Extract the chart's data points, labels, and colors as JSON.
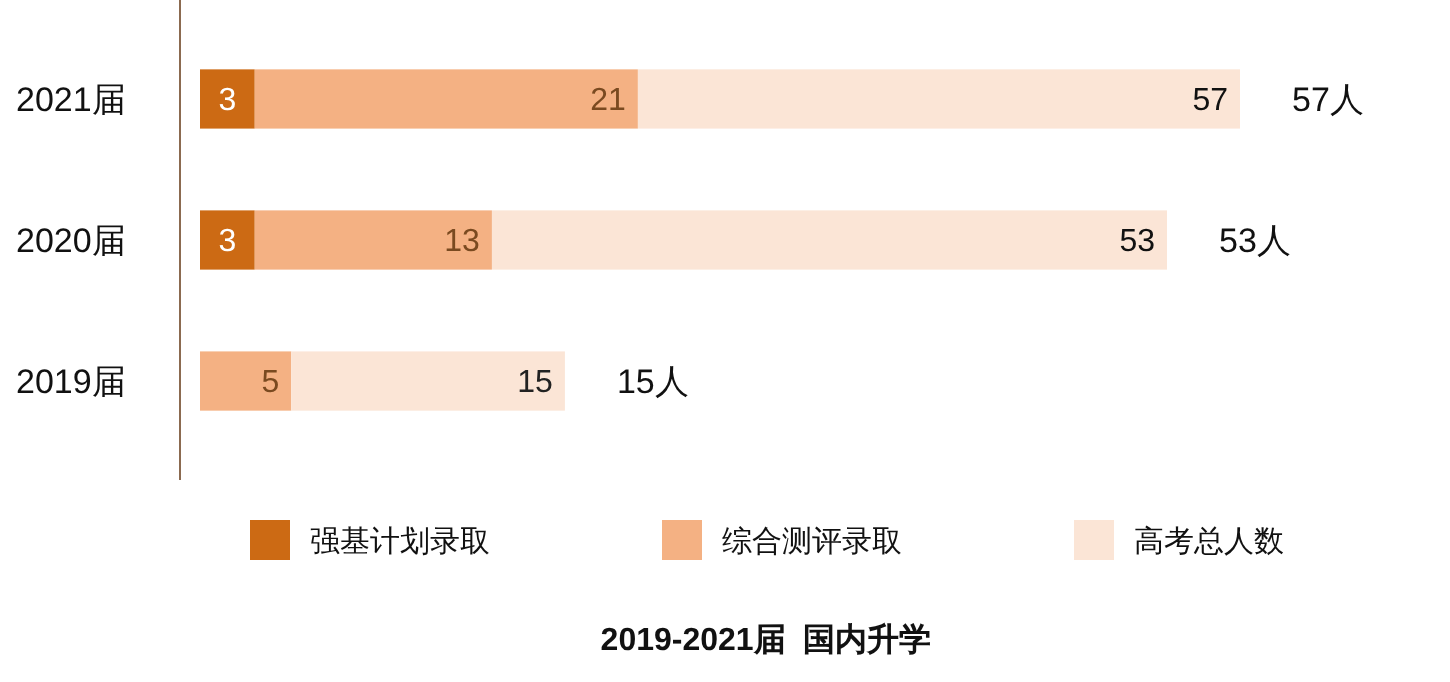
{
  "chart_data": {
    "type": "bar",
    "orientation": "horizontal",
    "stacked": true,
    "title": "2019-2021届  国内升学",
    "categories": [
      "2021届",
      "2020届",
      "2019届"
    ],
    "series": [
      {
        "name": "强基计划录取",
        "color": "#cc6a14",
        "values": [
          3,
          3,
          null
        ],
        "value_labels": [
          "3",
          "3",
          null
        ]
      },
      {
        "name": "综合测评录取",
        "color": "#f4b183",
        "values": [
          21,
          13,
          5
        ],
        "value_labels": [
          "21",
          "13",
          "5"
        ]
      },
      {
        "name": "高考总人数",
        "color": "#fbe5d6",
        "values": [
          33,
          37,
          15
        ],
        "value_labels": [
          null,
          null,
          "15"
        ]
      }
    ],
    "annotations": [
      {
        "text": "57",
        "x": 57,
        "y": "2021届"
      },
      {
        "text": "57人",
        "x": 57,
        "y": "2021届"
      },
      {
        "text": "53",
        "x": 53,
        "y": "2020届"
      },
      {
        "text": "53人",
        "x": 53,
        "y": "2020届"
      },
      {
        "text": "15人",
        "x": 20,
        "y": "2019届"
      }
    ],
    "legend": "bottom",
    "grid": false
  }
}
